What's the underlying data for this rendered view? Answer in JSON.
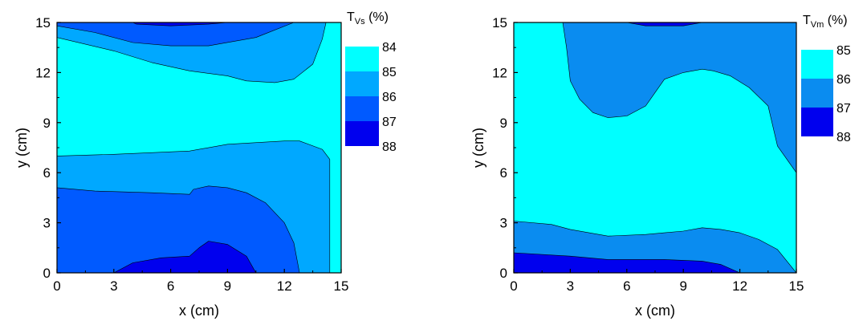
{
  "chart_data": [
    {
      "type": "heatmap",
      "subtype": "filled-contour",
      "xlabel": "x (cm)",
      "ylabel": "y (cm)",
      "xlim": [
        0,
        15
      ],
      "ylim": [
        0,
        15
      ],
      "xticks": [
        "0",
        "3",
        "6",
        "9",
        "12",
        "15"
      ],
      "yticks": [
        "0",
        "3",
        "6",
        "9",
        "12",
        "15"
      ],
      "legend": {
        "title_main": "T",
        "title_sub": "Vs",
        "title_unit": " (%)",
        "levels": [
          "84",
          "85",
          "86",
          "87",
          "88"
        ],
        "colors": [
          "#00FFFF",
          "#00A8FF",
          "#005AFF",
          "#0000EE"
        ]
      },
      "regions": [
        {
          "level": "84-85",
          "color": "#00FFFF",
          "points": [
            [
              0,
              0
            ],
            [
              15,
              0
            ],
            [
              15,
              15
            ],
            [
              0,
              15
            ]
          ]
        },
        {
          "level": "85-86",
          "color": "#00A8FF",
          "points": [
            [
              0,
              15
            ],
            [
              0,
              14.1
            ],
            [
              3,
              13.3
            ],
            [
              5,
              12.6
            ],
            [
              7,
              12.1
            ],
            [
              9,
              11.8
            ],
            [
              10,
              11.5
            ],
            [
              11.5,
              11.4
            ],
            [
              12.5,
              11.6
            ],
            [
              13.5,
              12.5
            ],
            [
              14,
              14
            ],
            [
              14.2,
              15
            ]
          ]
        },
        {
          "level": "85-86",
          "color": "#00A8FF",
          "points": [
            [
              0,
              0
            ],
            [
              0,
              7
            ],
            [
              3,
              7.1
            ],
            [
              7,
              7.3
            ],
            [
              9,
              7.7
            ],
            [
              12,
              7.9
            ],
            [
              12.8,
              7.9
            ],
            [
              14,
              7.4
            ],
            [
              14.4,
              6.8
            ],
            [
              14.4,
              0
            ]
          ]
        },
        {
          "level": "86-87",
          "color": "#005AFF",
          "points": [
            [
              0,
              15
            ],
            [
              0,
              14.8
            ],
            [
              2,
              14.4
            ],
            [
              4,
              13.8
            ],
            [
              6,
              13.6
            ],
            [
              8,
              13.6
            ],
            [
              10.5,
              14.1
            ],
            [
              12.5,
              15
            ]
          ]
        },
        {
          "level": "86-87",
          "color": "#005AFF",
          "points": [
            [
              0,
              0
            ],
            [
              0,
              5.1
            ],
            [
              2,
              4.9
            ],
            [
              5,
              4.8
            ],
            [
              7,
              4.7
            ],
            [
              7.2,
              5
            ],
            [
              8,
              5.2
            ],
            [
              9,
              5.1
            ],
            [
              10,
              4.8
            ],
            [
              11,
              4.2
            ],
            [
              12,
              3
            ],
            [
              12.5,
              1.8
            ],
            [
              12.8,
              0
            ]
          ]
        },
        {
          "level": "87-88",
          "color": "#0000EE",
          "points": [
            [
              4,
              15
            ],
            [
              4.2,
              14.9
            ],
            [
              6,
              14.8
            ],
            [
              8,
              14.9
            ],
            [
              9,
              15
            ]
          ]
        },
        {
          "level": "87-88",
          "color": "#0000EE",
          "points": [
            [
              3,
              0
            ],
            [
              4,
              0.6
            ],
            [
              5.5,
              0.9
            ],
            [
              7,
              1
            ],
            [
              7.5,
              1.5
            ],
            [
              8,
              1.9
            ],
            [
              9,
              1.7
            ],
            [
              10,
              1
            ],
            [
              10.5,
              0
            ]
          ]
        }
      ]
    },
    {
      "type": "heatmap",
      "subtype": "filled-contour",
      "xlabel": "x (cm)",
      "ylabel": "y (cm)",
      "xlim": [
        0,
        15
      ],
      "ylim": [
        0,
        15
      ],
      "xticks": [
        "0",
        "3",
        "6",
        "9",
        "12",
        "15"
      ],
      "yticks": [
        "0",
        "3",
        "6",
        "9",
        "12",
        "15"
      ],
      "legend": {
        "title_main": "T",
        "title_sub": "Vm",
        "title_unit": " (%)",
        "levels": [
          "85",
          "86",
          "87",
          "88"
        ],
        "colors": [
          "#00FFFF",
          "#0A8CF0",
          "#0000EE"
        ]
      },
      "regions": [
        {
          "level": "85-86",
          "color": "#00FFFF",
          "points": [
            [
              0,
              0
            ],
            [
              15,
              0
            ],
            [
              15,
              15
            ],
            [
              0,
              15
            ]
          ]
        },
        {
          "level": "86-87",
          "color": "#0A8CF0",
          "points": [
            [
              2.6,
              15
            ],
            [
              2.8,
              13.5
            ],
            [
              3,
              11.5
            ],
            [
              3.5,
              10.4
            ],
            [
              4.2,
              9.6
            ],
            [
              5,
              9.3
            ],
            [
              6,
              9.4
            ],
            [
              7,
              10
            ],
            [
              8,
              11.6
            ],
            [
              9,
              12
            ],
            [
              10,
              12.2
            ],
            [
              10.6,
              12.1
            ],
            [
              11.5,
              11.8
            ],
            [
              12.5,
              11.1
            ],
            [
              13.5,
              10
            ],
            [
              14,
              7.6
            ],
            [
              15,
              6
            ],
            [
              15,
              15
            ]
          ]
        },
        {
          "level": "86-87",
          "color": "#0A8CF0",
          "points": [
            [
              0,
              0
            ],
            [
              0,
              3.1
            ],
            [
              2,
              2.9
            ],
            [
              3,
              2.6
            ],
            [
              4,
              2.4
            ],
            [
              5,
              2.2
            ],
            [
              7,
              2.3
            ],
            [
              8,
              2.4
            ],
            [
              9,
              2.5
            ],
            [
              10,
              2.7
            ],
            [
              11,
              2.6
            ],
            [
              12,
              2.4
            ],
            [
              13,
              2
            ],
            [
              14,
              1.4
            ],
            [
              15,
              0
            ]
          ]
        },
        {
          "level": "87-88",
          "color": "#0000EE",
          "points": [
            [
              0,
              0
            ],
            [
              0,
              1.2
            ],
            [
              3,
              1
            ],
            [
              5,
              0.8
            ],
            [
              8,
              0.8
            ],
            [
              10,
              0.7
            ],
            [
              11,
              0.5
            ],
            [
              12,
              0
            ]
          ]
        },
        {
          "level": "87-88",
          "color": "#0000EE",
          "points": [
            [
              6,
              15
            ],
            [
              7,
              14.8
            ],
            [
              9,
              14.8
            ],
            [
              10,
              15
            ]
          ]
        }
      ]
    }
  ]
}
